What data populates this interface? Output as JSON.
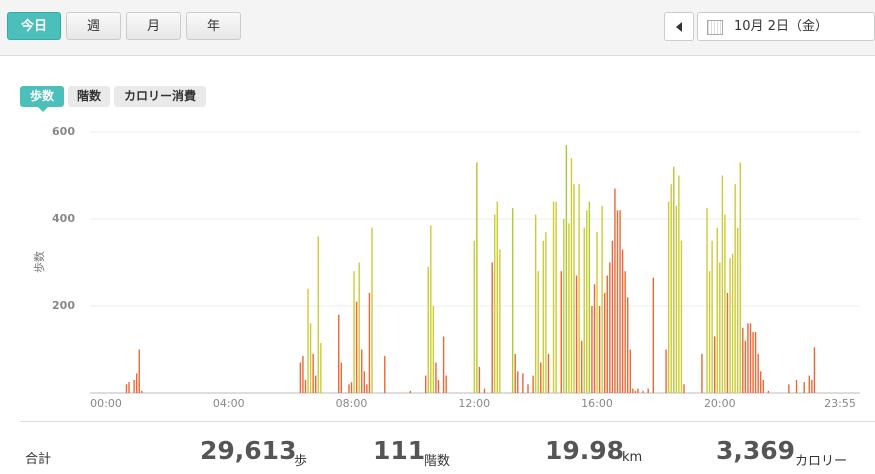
{
  "tabs": [
    "今日",
    "週",
    "月",
    "年"
  ],
  "date": "10月 2日（金）",
  "metric_tabs": [
    "歩数",
    "階数",
    "カロリー消費"
  ],
  "chart_data": {
    "type": "bar",
    "y_label": "歩数",
    "ylim": [
      0,
      600
    ],
    "yticks": [
      200,
      400,
      600
    ],
    "grid": true,
    "categories": [
      "00:00",
      null,
      null,
      null,
      null,
      null,
      null,
      null,
      null,
      null,
      null,
      null,
      null,
      null,
      null,
      null,
      null,
      null,
      null,
      null,
      null,
      null,
      null,
      null,
      null,
      null,
      null,
      null,
      null,
      null,
      null,
      null,
      null,
      null,
      null,
      null,
      null,
      null,
      null,
      null,
      null,
      null,
      null,
      null,
      null,
      null,
      null,
      null,
      "04:00",
      null,
      null,
      null,
      null,
      null,
      null,
      null,
      null,
      null,
      null,
      null,
      null,
      null,
      null,
      null,
      null,
      null,
      null,
      null,
      null,
      null,
      null,
      null,
      null,
      null,
      null,
      null,
      null,
      null,
      null,
      null,
      null,
      null,
      null,
      null,
      null,
      null,
      null,
      null,
      null,
      null,
      null,
      null,
      null,
      null,
      null,
      null,
      "08:00",
      null,
      null,
      null,
      null,
      null,
      null,
      null,
      null,
      null,
      null,
      null,
      null,
      null,
      null,
      null,
      null,
      null,
      null,
      null,
      null,
      null,
      null,
      null,
      null,
      null,
      null,
      null,
      null,
      null,
      null,
      null,
      null,
      null,
      null,
      null,
      null,
      null,
      null,
      null,
      null,
      null,
      null,
      null,
      null,
      null,
      null,
      null,
      "12:00",
      null,
      null,
      null,
      null,
      null,
      null,
      null,
      null,
      null,
      null,
      null,
      null,
      null,
      null,
      null,
      null,
      null,
      null,
      null,
      null,
      null,
      null,
      null,
      null,
      null,
      null,
      null,
      null,
      null,
      null,
      null,
      null,
      null,
      null,
      null,
      null,
      null,
      null,
      null,
      null,
      null,
      null,
      null,
      null,
      null,
      null,
      null,
      "16:00",
      null,
      null,
      null,
      null,
      null,
      null,
      null,
      null,
      null,
      null,
      null,
      null,
      null,
      null,
      null,
      null,
      null,
      null,
      null,
      null,
      null,
      null,
      null,
      null,
      null,
      null,
      null,
      null,
      null,
      null,
      null,
      null,
      null,
      null,
      null,
      null,
      null,
      null,
      null,
      null,
      null,
      null,
      null,
      null,
      null,
      null,
      null,
      "20:00",
      null,
      null,
      null,
      null,
      null,
      null,
      null,
      null,
      null,
      null,
      null,
      null,
      null,
      null,
      null,
      null,
      null,
      null,
      null,
      null,
      null,
      null,
      null,
      null,
      null,
      null,
      null,
      null,
      null,
      null,
      null,
      null,
      null,
      null,
      null,
      null,
      null,
      null,
      null,
      null,
      null,
      null,
      null,
      null,
      null,
      null,
      "23:55"
    ],
    "values": [
      0,
      0,
      0,
      0,
      0,
      0,
      0,
      0,
      20,
      25,
      0,
      30,
      45,
      100,
      5,
      0,
      0,
      0,
      0,
      0,
      0,
      0,
      0,
      0,
      0,
      0,
      0,
      0,
      0,
      0,
      0,
      0,
      0,
      0,
      0,
      0,
      0,
      0,
      0,
      0,
      0,
      0,
      0,
      0,
      0,
      0,
      0,
      0,
      0,
      0,
      0,
      0,
      0,
      0,
      0,
      0,
      0,
      0,
      0,
      0,
      0,
      0,
      0,
      0,
      0,
      0,
      0,
      0,
      0,
      0,
      0,
      0,
      0,
      0,
      0,
      0,
      70,
      85,
      30,
      240,
      160,
      90,
      40,
      360,
      115,
      0,
      0,
      0,
      0,
      0,
      0,
      180,
      70,
      0,
      0,
      20,
      25,
      280,
      210,
      300,
      100,
      50,
      20,
      230,
      380,
      0,
      0,
      0,
      0,
      85,
      0,
      0,
      0,
      0,
      0,
      0,
      0,
      0,
      0,
      5,
      0,
      0,
      0,
      0,
      0,
      40,
      290,
      385,
      200,
      70,
      30,
      0,
      130,
      40,
      0,
      0,
      0,
      0,
      0,
      0,
      0,
      0,
      0,
      0,
      350,
      530,
      60,
      0,
      10,
      0,
      0,
      300,
      410,
      440,
      330,
      0,
      0,
      0,
      0,
      425,
      90,
      50,
      0,
      45,
      0,
      20,
      0,
      40,
      410,
      280,
      70,
      350,
      370,
      90,
      0,
      440,
      440,
      0,
      280,
      400,
      570,
      390,
      540,
      480,
      270,
      480,
      120,
      380,
      420,
      440,
      200,
      250,
      370,
      200,
      430,
      230,
      270,
      300,
      350,
      470,
      420,
      420,
      330,
      280,
      220,
      100,
      10,
      5,
      10,
      0,
      5,
      0,
      10,
      0,
      265,
      0,
      0,
      0,
      0,
      100,
      440,
      480,
      520,
      430,
      500,
      350,
      20,
      0,
      0,
      0,
      0,
      0,
      0,
      90,
      0,
      425,
      280,
      350,
      130,
      380,
      300,
      500,
      410,
      230,
      310,
      320,
      480,
      380,
      530,
      150,
      120,
      160,
      160,
      140,
      140,
      90,
      50,
      30,
      0,
      5,
      0,
      0,
      0,
      0,
      0,
      0,
      0,
      20,
      0,
      0,
      30,
      0,
      0,
      25,
      0,
      40,
      30,
      105,
      0,
      0,
      0,
      0,
      0,
      0,
      0,
      0,
      0,
      0
    ],
    "colors": [
      "#e63",
      "#e63",
      "#e63",
      "#e63",
      "#e63",
      "#e63",
      "#e63",
      "#e63",
      "#e63",
      "#e63",
      "#e63",
      "#e63",
      "#e63",
      "#e63",
      "#e63",
      "#e63",
      "#e63",
      "#e63",
      "#e63",
      "#e63",
      "#e63",
      "#e63",
      "#e63",
      "#e63",
      "#e63",
      "#e63",
      "#e63",
      "#e63",
      "#e63",
      "#e63",
      "#e63",
      "#e63",
      "#e63",
      "#e63",
      "#e63",
      "#e63",
      "#e63",
      "#e63",
      "#e63",
      "#e63",
      "#e63",
      "#e63",
      "#e63",
      "#e63",
      "#e63",
      "#e63",
      "#e63",
      "#e63",
      "#e63",
      "#e63",
      "#e63",
      "#e63",
      "#e63",
      "#e63",
      "#e63",
      "#e63",
      "#e63",
      "#e63",
      "#e63",
      "#e63",
      "#e63",
      "#e63",
      "#e63",
      "#e63",
      "#e63",
      "#e63",
      "#e63",
      "#e63",
      "#e63",
      "#e63",
      "#e63",
      "#e63",
      "#e63",
      "#e63",
      "#e63",
      "#e63",
      "#e63",
      "#e63",
      "#e63",
      "#cc3",
      "#cc3",
      "#e63",
      "#e63",
      "#cc3",
      "#cc3",
      "#e63",
      "#e63",
      "#e63",
      "#e63",
      "#e63",
      "#e63",
      "#e63",
      "#e63",
      "#e63",
      "#e63",
      "#e63",
      "#e63",
      "#cc3",
      "#e63",
      "#cc3",
      "#e63",
      "#e63",
      "#e63",
      "#e63",
      "#cc3",
      "#e63",
      "#e63",
      "#e63",
      "#e63",
      "#e63",
      "#e63",
      "#e63",
      "#e63",
      "#e63",
      "#e63",
      "#e63",
      "#e63",
      "#e63",
      "#e63",
      "#e63",
      "#e63",
      "#e63",
      "#e63",
      "#e63",
      "#e63",
      "#e63",
      "#cc3",
      "#cc3",
      "#cc3",
      "#e63",
      "#e63",
      "#e63",
      "#e63",
      "#e63",
      "#e63",
      "#e63",
      "#e63",
      "#e63",
      "#e63",
      "#e63",
      "#e63",
      "#e63",
      "#e63",
      "#e63",
      "#cc3",
      "#ac3",
      "#e63",
      "#e63",
      "#e63",
      "#e63",
      "#e63",
      "#e63",
      "#cc3",
      "#cc3",
      "#cc3",
      "#e63",
      "#e63",
      "#e63",
      "#e63",
      "#ac3",
      "#e63",
      "#e63",
      "#e63",
      "#e63",
      "#e63",
      "#e63",
      "#e63",
      "#e63",
      "#cc3",
      "#cc3",
      "#e63",
      "#cc3",
      "#cc3",
      "#e63",
      "#e63",
      "#cc3",
      "#cc3",
      "#e63",
      "#e63",
      "#cc3",
      "#ac3",
      "#cc3",
      "#cc3",
      "#cc3",
      "#e63",
      "#cc3",
      "#e63",
      "#cc3",
      "#cc3",
      "#ac3",
      "#e63",
      "#e63",
      "#cc3",
      "#e63",
      "#cc3",
      "#e63",
      "#e63",
      "#e63",
      "#e63",
      "#e63",
      "#e63",
      "#e63",
      "#e63",
      "#e63",
      "#e63",
      "#e63",
      "#e63",
      "#e63",
      "#e63",
      "#e63",
      "#e63",
      "#e63",
      "#e63",
      "#e63",
      "#e63",
      "#e63",
      "#e63",
      "#e63",
      "#e63",
      "#e63",
      "#cc3",
      "#cc3",
      "#ac3",
      "#cc3",
      "#cc3",
      "#cc3",
      "#e63",
      "#e63",
      "#e63",
      "#e63",
      "#e63",
      "#e63",
      "#e63",
      "#e63",
      "#e63",
      "#cc3",
      "#cc3",
      "#cc3",
      "#e63",
      "#cc3",
      "#cc3",
      "#cc3",
      "#cc3",
      "#e63",
      "#cc3",
      "#cc3",
      "#cc3",
      "#cc3",
      "#cc3",
      "#e63",
      "#e63",
      "#e63",
      "#e63",
      "#e63",
      "#e63",
      "#e63",
      "#e63",
      "#e63",
      "#e63",
      "#e63",
      "#e63",
      "#e63",
      "#e63",
      "#e63",
      "#e63",
      "#e63",
      "#e63",
      "#e63",
      "#e63",
      "#e63",
      "#e63",
      "#e63",
      "#e63",
      "#e63",
      "#e63",
      "#e63",
      "#e63",
      "#e63",
      "#e63",
      "#e63",
      "#e63",
      "#e63",
      "#e63",
      "#e63",
      "#e63",
      "#e63",
      "#e63",
      "#e63"
    ]
  },
  "totals_label": "合計",
  "totals": [
    {
      "value": "29,613",
      "unit": "歩"
    },
    {
      "value": "111",
      "unit": "階数"
    },
    {
      "value": "19.98",
      "unit": "km"
    },
    {
      "value": "3,369",
      "unit": "カロリー"
    }
  ]
}
